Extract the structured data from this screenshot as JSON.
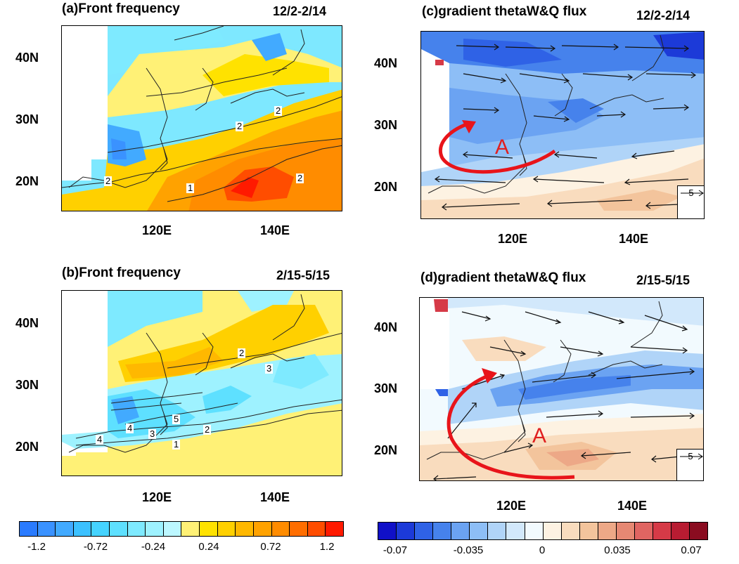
{
  "panels": {
    "a": {
      "title": "(a)Front frequency",
      "date": "12/2-2/14"
    },
    "b": {
      "title": "(b)Front frequency",
      "date": "2/15-5/15"
    },
    "c": {
      "title": "(c)gradient thetaW&Q flux",
      "date": "12/2-2/14"
    },
    "d": {
      "title": "(d)gradient thetaW&Q flux",
      "date": "2/15-5/15"
    }
  },
  "axes": {
    "lat_labels": [
      "40N",
      "30N",
      "20N"
    ],
    "lon_labels": [
      "120E",
      "140E"
    ]
  },
  "contour_labels": {
    "a": [
      "2",
      "2",
      "2",
      "1",
      "2"
    ],
    "b": [
      "2",
      "3",
      "5",
      "2",
      "4",
      "4",
      "3",
      "1"
    ]
  },
  "annotations": {
    "c": "A",
    "d": "A"
  },
  "reference_vector": {
    "c": "5",
    "d": "5"
  },
  "colorbar_left": {
    "labels": [
      "-1.2",
      "-0.72",
      "-0.24",
      "0.24",
      "0.72",
      "1.2"
    ],
    "colors": [
      "#2a7bff",
      "#3a92ff",
      "#42aaff",
      "#3cc1ff",
      "#45d3ff",
      "#5ee0ff",
      "#7eeaff",
      "#9ef2ff",
      "#bcf7ff",
      "#fff176",
      "#ffe200",
      "#ffd000",
      "#ffb800",
      "#ffa200",
      "#ff8c00",
      "#ff6e00",
      "#ff4d00",
      "#ff1a00"
    ]
  },
  "colorbar_right": {
    "labels": [
      "-0.07",
      "-0.035",
      "0",
      "0.035",
      "0.07"
    ],
    "colors": [
      "#1010c8",
      "#1c3ad8",
      "#2f62e6",
      "#4682ec",
      "#6ba3f2",
      "#8dbef6",
      "#b0d4f8",
      "#d2e8fb",
      "#f2fafe",
      "#fdf2e2",
      "#f9dcbe",
      "#f3c49c",
      "#eda887",
      "#e68873",
      "#e06562",
      "#d63a47",
      "#b81c32",
      "#8a0c20"
    ]
  }
}
